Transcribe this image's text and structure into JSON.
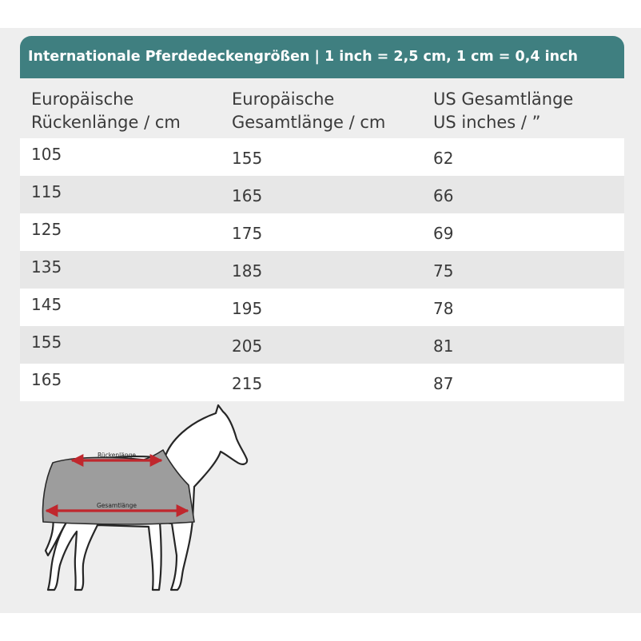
{
  "table": {
    "title": "Internationale Pferdedeckengrößen | 1 inch = 2,5 cm, 1 cm = 0,4 inch",
    "headers": [
      {
        "line1": "Europäische",
        "line2": "Rückenlänge / cm"
      },
      {
        "line1": "Europäische",
        "line2": "Gesamtlänge / cm"
      },
      {
        "line1": "US Gesamtlänge",
        "line2": "US inches / ”"
      }
    ],
    "rows": [
      [
        "105",
        "155",
        "62"
      ],
      [
        "115",
        "165",
        "66"
      ],
      [
        "125",
        "175",
        "69"
      ],
      [
        "135",
        "185",
        "75"
      ],
      [
        "145",
        "195",
        "78"
      ],
      [
        "155",
        "205",
        "81"
      ],
      [
        "165",
        "215",
        "87"
      ]
    ]
  },
  "illustration": {
    "back_length_label": "Rückenlänge",
    "total_length_label": "Gesamtlänge",
    "arrow_color": "#c0272d",
    "blanket_color": "#9d9d9d"
  }
}
